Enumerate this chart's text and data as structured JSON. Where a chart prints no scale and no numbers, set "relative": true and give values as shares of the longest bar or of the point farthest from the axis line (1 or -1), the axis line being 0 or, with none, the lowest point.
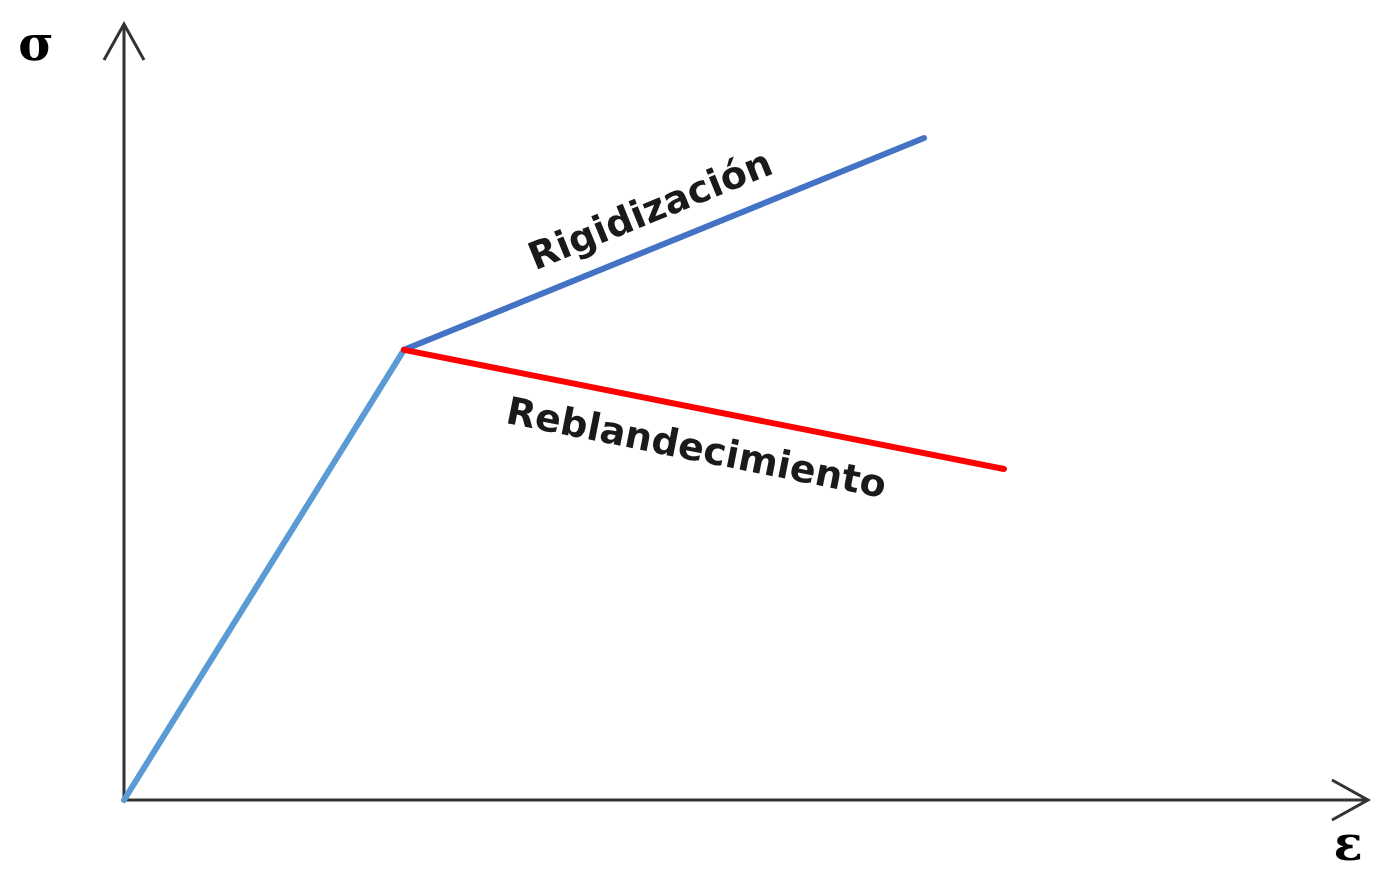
{
  "chart_data": {
    "type": "line",
    "relative": true,
    "annotations": [
      "ε"
    ],
    "ylabel": "σ",
    "categories": [
      null,
      null,
      null,
      null,
      null,
      null,
      null,
      null,
      null,
      null,
      null,
      null,
      null,
      null,
      null,
      null,
      null,
      null,
      null,
      null,
      null,
      null,
      null
    ],
    "series": [
      {
        "color": "#5b9bd5",
        "values": [
          0,
          null,
          null,
          null,
          null,
          null,
          null,
          0.68,
          null,
          null,
          null,
          null,
          null,
          null,
          null,
          null,
          null,
          null,
          null,
          null,
          null,
          null,
          null
        ]
      },
      {
        "name": "Rigidización",
        "color": "#4472c4",
        "values": [
          null,
          null,
          null,
          null,
          null,
          null,
          null,
          0.68,
          null,
          null,
          null,
          null,
          null,
          null,
          null,
          null,
          null,
          null,
          null,
          null,
          1,
          null,
          null
        ]
      },
      {
        "name": "Reblandecimiento",
        "color": "#ff0000",
        "values": [
          null,
          null,
          null,
          null,
          null,
          null,
          null,
          0.68,
          null,
          null,
          null,
          null,
          null,
          null,
          null,
          null,
          null,
          null,
          null,
          null,
          null,
          null,
          0.5
        ]
      }
    ]
  }
}
